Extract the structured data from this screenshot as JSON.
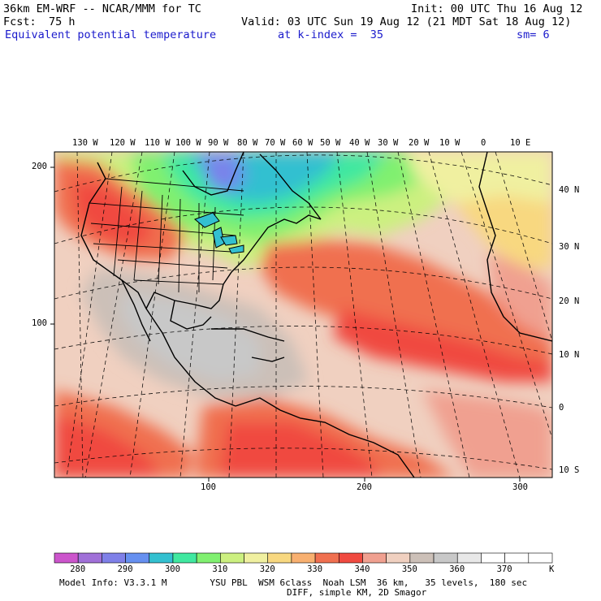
{
  "header": {
    "model": "36km EM-WRF -- NCAR/MMM for TC",
    "init": "Init: 00 UTC Thu 16 Aug 12",
    "fcst_label": "Fcst:",
    "fcst_value": "75 h",
    "valid": "Valid: 03 UTC Sun 19 Aug 12 (21 MDT Sat 18 Aug 12)",
    "field": "Equivalent potential temperature",
    "level": "at k-index =  35",
    "smoothing": "sm= 6"
  },
  "map": {
    "lon_labels_top": [
      "130 W",
      "120 W",
      "110 W",
      "100 W",
      "90 W",
      "80 W",
      "70 W",
      "60 W",
      "50 W",
      "40 W",
      "30 W",
      "20 W",
      "10 W",
      "0",
      "10 E"
    ],
    "lat_labels_right": [
      "40 N",
      "30 N",
      "20 N",
      "10 N",
      "0",
      "10 S"
    ],
    "grid_labels_left": [
      "200",
      "100"
    ],
    "grid_labels_bottom": [
      "100",
      "200",
      "300"
    ]
  },
  "colorbar": {
    "unit": "K",
    "tick_labels": [
      "280",
      "290",
      "300",
      "310",
      "320",
      "330",
      "340",
      "350",
      "360",
      "370"
    ],
    "colors": [
      "#cc55cc",
      "#a070d8",
      "#7f80e8",
      "#6690f0",
      "#33c0d0",
      "#40e8a0",
      "#80f070",
      "#ccf080",
      "#f0f0a0",
      "#f8d880",
      "#f8b070",
      "#f07050",
      "#f04a40",
      "#f0a090",
      "#f0d0c0",
      "#ccc0b8",
      "#c8c8c8",
      "#e8e8e8",
      "#ffffff",
      "#ffffff",
      "#ffffff"
    ]
  },
  "footer": {
    "line1": "Model Info: V3.3.1 M        YSU PBL  WSM 6class  Noah LSM  36 km,   35 levels,  180 sec",
    "line2": "DIFF, simple KM, 2D Smagor"
  }
}
